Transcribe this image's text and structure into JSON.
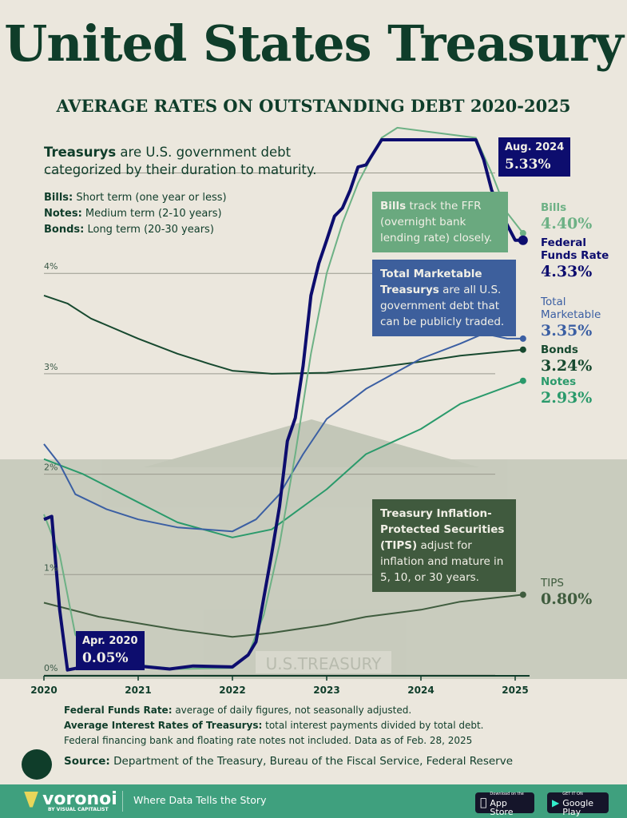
{
  "header": {
    "title": "United States Treasury",
    "subtitle": "AVERAGE RATES ON OUTSTANDING DEBT 2020-2025"
  },
  "intro": {
    "bold": "Treasurys",
    "rest": " are U.S. government debt categorized by their duration to maturity."
  },
  "definitions": [
    {
      "term": "Bills:",
      "text": " Short term (one year or less)"
    },
    {
      "term": "Notes:",
      "text": " Medium term (2-10 years)"
    },
    {
      "term": "Bonds:",
      "text": " Long term (20-30 years)"
    }
  ],
  "callouts": {
    "bills": {
      "bold": "Bills",
      "rest": " track the FFR (overnight bank lending rate) closely."
    },
    "total": {
      "bold": "Total Marketable Treasurys",
      "rest": " are all U.S. government debt that can be publicly traded."
    },
    "tips": {
      "bold": "Treasury Inflation-Protected Securities (TIPS)",
      "rest": " adjust for inflation and mature in 5, 10, or 30 years."
    },
    "peak": {
      "date": "Aug. 2024",
      "value": "5.33%"
    },
    "low": {
      "date": "Apr. 2020",
      "value": "0.05%"
    }
  },
  "colors": {
    "ffr": "#0d0d6e",
    "bills": "#6db185",
    "total": "#3b5fa3",
    "notes": "#2a9a6b",
    "bonds": "#17492f",
    "tips": "#3f5c3e",
    "footer": "#3fa07e"
  },
  "chart_data": {
    "type": "line",
    "title": "AVERAGE RATES ON OUTSTANDING DEBT 2020-2025",
    "xlabel": "",
    "ylabel": "",
    "xticks": [
      "2020",
      "2021",
      "2022",
      "2023",
      "2024",
      "2025"
    ],
    "yticks": [
      "0%",
      "1%",
      "2%",
      "3%",
      "4%"
    ],
    "ylim": [
      0,
      5.5
    ],
    "grid": true,
    "series": [
      {
        "name": "Federal Funds Rate",
        "key": "ffr",
        "end_label": "4.33%",
        "points": [
          [
            "2020-01",
            1.55
          ],
          [
            "2020-02",
            1.58
          ],
          [
            "2020-03",
            0.65
          ],
          [
            "2020-04",
            0.05
          ],
          [
            "2020-06",
            0.08
          ],
          [
            "2020-09",
            0.09
          ],
          [
            "2021-01",
            0.09
          ],
          [
            "2021-05",
            0.06
          ],
          [
            "2021-08",
            0.09
          ],
          [
            "2022-01",
            0.08
          ],
          [
            "2022-03",
            0.2
          ],
          [
            "2022-04",
            0.33
          ],
          [
            "2022-05",
            0.77
          ],
          [
            "2022-06",
            1.21
          ],
          [
            "2022-07",
            1.68
          ],
          [
            "2022-08",
            2.33
          ],
          [
            "2022-09",
            2.56
          ],
          [
            "2022-10",
            3.08
          ],
          [
            "2022-11",
            3.78
          ],
          [
            "2022-12",
            4.1
          ],
          [
            "2023-01",
            4.33
          ],
          [
            "2023-02",
            4.57
          ],
          [
            "2023-03",
            4.65
          ],
          [
            "2023-04",
            4.83
          ],
          [
            "2023-05",
            5.06
          ],
          [
            "2023-06",
            5.08
          ],
          [
            "2023-08",
            5.33
          ],
          [
            "2024-08",
            5.33
          ],
          [
            "2024-09",
            5.13
          ],
          [
            "2024-10",
            4.83
          ],
          [
            "2024-11",
            4.64
          ],
          [
            "2024-12",
            4.48
          ],
          [
            "2025-01",
            4.33
          ],
          [
            "2025-02",
            4.33
          ]
        ]
      },
      {
        "name": "Bills",
        "key": "bills",
        "end_label": "4.40%",
        "points": [
          [
            "2020-01",
            1.6
          ],
          [
            "2020-03",
            1.2
          ],
          [
            "2020-05",
            0.4
          ],
          [
            "2020-08",
            0.15
          ],
          [
            "2021-01",
            0.1
          ],
          [
            "2021-06",
            0.06
          ],
          [
            "2022-01",
            0.07
          ],
          [
            "2022-03",
            0.2
          ],
          [
            "2022-05",
            0.6
          ],
          [
            "2022-07",
            1.3
          ],
          [
            "2022-09",
            2.2
          ],
          [
            "2022-11",
            3.2
          ],
          [
            "2023-01",
            4.0
          ],
          [
            "2023-03",
            4.5
          ],
          [
            "2023-05",
            4.9
          ],
          [
            "2023-08",
            5.35
          ],
          [
            "2023-10",
            5.45
          ],
          [
            "2024-03",
            5.4
          ],
          [
            "2024-08",
            5.35
          ],
          [
            "2024-10",
            5.0
          ],
          [
            "2024-12",
            4.6
          ],
          [
            "2025-02",
            4.4
          ]
        ]
      },
      {
        "name": "Total Marketable",
        "key": "total",
        "end_label": "3.35%",
        "points": [
          [
            "2020-01",
            2.3
          ],
          [
            "2020-03",
            2.1
          ],
          [
            "2020-05",
            1.8
          ],
          [
            "2020-09",
            1.65
          ],
          [
            "2021-01",
            1.55
          ],
          [
            "2021-06",
            1.47
          ],
          [
            "2022-01",
            1.43
          ],
          [
            "2022-04",
            1.55
          ],
          [
            "2022-07",
            1.8
          ],
          [
            "2022-10",
            2.2
          ],
          [
            "2023-01",
            2.55
          ],
          [
            "2023-06",
            2.85
          ],
          [
            "2024-01",
            3.15
          ],
          [
            "2024-06",
            3.3
          ],
          [
            "2024-09",
            3.4
          ],
          [
            "2024-12",
            3.35
          ],
          [
            "2025-02",
            3.35
          ]
        ]
      },
      {
        "name": "Bonds",
        "key": "bonds",
        "end_label": "3.24%",
        "points": [
          [
            "2020-01",
            3.78
          ],
          [
            "2020-04",
            3.7
          ],
          [
            "2020-07",
            3.55
          ],
          [
            "2021-01",
            3.35
          ],
          [
            "2021-06",
            3.2
          ],
          [
            "2021-10",
            3.1
          ],
          [
            "2022-01",
            3.03
          ],
          [
            "2022-06",
            3.0
          ],
          [
            "2023-01",
            3.01
          ],
          [
            "2023-06",
            3.05
          ],
          [
            "2024-01",
            3.12
          ],
          [
            "2024-06",
            3.18
          ],
          [
            "2025-02",
            3.24
          ]
        ]
      },
      {
        "name": "Notes",
        "key": "notes",
        "end_label": "2.93%",
        "points": [
          [
            "2020-01",
            2.15
          ],
          [
            "2020-06",
            2.0
          ],
          [
            "2021-01",
            1.72
          ],
          [
            "2021-06",
            1.52
          ],
          [
            "2022-01",
            1.37
          ],
          [
            "2022-06",
            1.45
          ],
          [
            "2023-01",
            1.85
          ],
          [
            "2023-06",
            2.2
          ],
          [
            "2024-01",
            2.45
          ],
          [
            "2024-06",
            2.7
          ],
          [
            "2025-02",
            2.93
          ]
        ]
      },
      {
        "name": "TIPS",
        "key": "tips",
        "end_label": "0.80%",
        "points": [
          [
            "2020-01",
            0.72
          ],
          [
            "2020-08",
            0.58
          ],
          [
            "2021-06",
            0.45
          ],
          [
            "2022-01",
            0.38
          ],
          [
            "2022-06",
            0.42
          ],
          [
            "2023-01",
            0.5
          ],
          [
            "2023-06",
            0.58
          ],
          [
            "2024-01",
            0.65
          ],
          [
            "2024-06",
            0.73
          ],
          [
            "2025-02",
            0.8
          ]
        ]
      }
    ]
  },
  "footnotes": [
    {
      "term": "Federal Funds Rate:",
      "text": " average of daily figures, not seasonally adjusted."
    },
    {
      "term": "Average Interest Rates of Treasurys:",
      "text": " total interest payments divided by total debt."
    },
    {
      "term": "",
      "text": "Federal financing bank and floating rate notes not included. Data as of Feb. 28, 2025"
    }
  ],
  "source": {
    "term": "Source:",
    "text": " Department of the Treasury, Bureau of the Fiscal Service, Federal Reserve"
  },
  "footer": {
    "brand": "voronoi",
    "byline": "BY VISUAL CAPITALIST",
    "tagline": "Where Data Tells the Story",
    "appstore_small": "Download on the",
    "appstore": "App Store",
    "gplay_small": "GET IT ON",
    "gplay": "Google Play"
  },
  "background": {
    "engraving": "U.S.TREASURY"
  }
}
